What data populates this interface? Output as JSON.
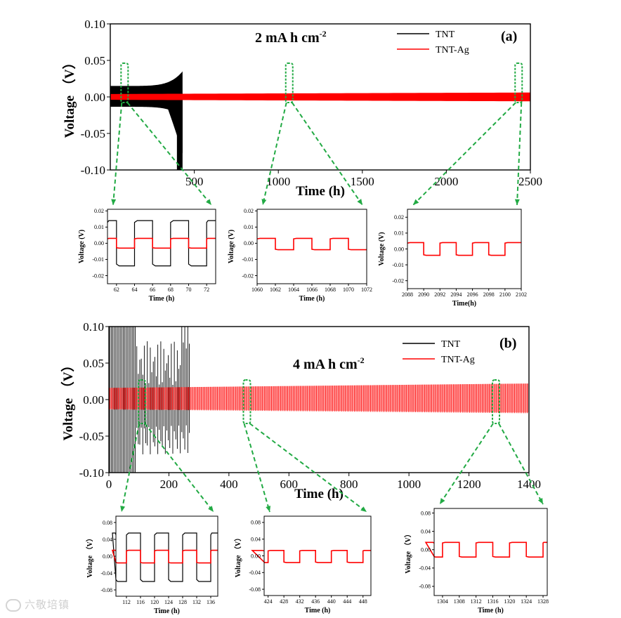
{
  "figure": {
    "watermark": "六敬培镇"
  },
  "chart_data": [
    {
      "id": "a_main",
      "type": "line",
      "panel_label": "(a)",
      "annotation": "2 mA h cm",
      "annotation_sup": "-2",
      "xlabel": "Time (h)",
      "ylabel": "Voltage （V）",
      "xlim": [
        0,
        2500
      ],
      "ylim": [
        -0.1,
        0.1
      ],
      "xticks": [
        500,
        1000,
        1500,
        2000,
        2500
      ],
      "yticks": [
        -0.1,
        -0.05,
        0.0,
        0.05,
        0.1
      ],
      "xtick_labels": [
        "500",
        "1000",
        "1500",
        "2000",
        "2500"
      ],
      "ytick_labels": [
        "-0.10",
        "-0.05",
        "0.00",
        "0.05",
        "0.10"
      ],
      "legend_position": "top-right",
      "series": [
        {
          "name": "TNT",
          "color": "#000000",
          "start_x": 0,
          "end_x": 430,
          "amplitude_start": 0.015,
          "amplitude_end": 0.035
        },
        {
          "name": "TNT-Ag",
          "color": "#ff0000",
          "start_x": 0,
          "end_x": 2500,
          "amplitude_start": 0.004,
          "amplitude_end": 0.006
        }
      ],
      "zoom_marks_x": [
        85,
        1065,
        2430
      ]
    },
    {
      "id": "a_in1",
      "type": "line",
      "xlabel": "Time (h)",
      "ylabel": "Voltage (V)",
      "xlim": [
        61,
        73
      ],
      "ylim": [
        -0.025,
        0.021
      ],
      "xticks": [
        62,
        64,
        66,
        68,
        70,
        72
      ],
      "xtick_labels": [
        "62",
        "64",
        "66",
        "68",
        "70",
        "72"
      ],
      "yticks": [
        -0.02,
        -0.01,
        0.0,
        0.01,
        0.02
      ],
      "ytick_labels": [
        "-0.02",
        "-0.01",
        "0.00",
        "0.01",
        "0.02"
      ],
      "period_h": 4,
      "series": [
        {
          "name": "TNT",
          "color": "#000000",
          "high": 0.014,
          "low": -0.014
        },
        {
          "name": "TNT-Ag",
          "color": "#ff0000",
          "high": 0.003,
          "low": -0.003
        }
      ]
    },
    {
      "id": "a_in2",
      "type": "line",
      "xlabel": "Time (h)",
      "ylabel": "Voltage (V)",
      "xlim": [
        1060,
        1072
      ],
      "ylim": [
        -0.025,
        0.021
      ],
      "xticks": [
        1060,
        1062,
        1064,
        1066,
        1068,
        1070,
        1072
      ],
      "xtick_labels": [
        "1060",
        "1062",
        "1064",
        "1066",
        "1068",
        "1070",
        "1072"
      ],
      "yticks": [
        -0.02,
        -0.01,
        0.0,
        0.01,
        0.02
      ],
      "ytick_labels": [
        "-0.02",
        "-0.01",
        "0.00",
        "0.01",
        "0.02"
      ],
      "period_h": 4,
      "series": [
        {
          "name": "TNT-Ag",
          "color": "#ff0000",
          "high": 0.003,
          "low": -0.004
        }
      ]
    },
    {
      "id": "a_in3",
      "type": "line",
      "xlabel": "Time(h)",
      "ylabel": "Voltage (V)",
      "xlim": [
        2088,
        2102
      ],
      "ylim": [
        -0.025,
        0.025
      ],
      "xticks": [
        2088,
        2090,
        2092,
        2094,
        2096,
        2098,
        2100,
        2102
      ],
      "xtick_labels": [
        "2088",
        "2090",
        "2092",
        "2094",
        "2096",
        "2098",
        "2100",
        "2102"
      ],
      "yticks": [
        -0.02,
        -0.01,
        0.0,
        0.01,
        0.02
      ],
      "ytick_labels": [
        "-0.02",
        "-0.01",
        "0.00",
        "0.01",
        "0.02"
      ],
      "period_h": 4,
      "series": [
        {
          "name": "TNT-Ag",
          "color": "#ff0000",
          "high": 0.004,
          "low": -0.004
        }
      ]
    },
    {
      "id": "b_main",
      "type": "line",
      "panel_label": "(b)",
      "annotation": "4 mA h cm",
      "annotation_sup": "-2",
      "xlabel": "Time (h)",
      "ylabel": "Voltage （V）",
      "xlim": [
        0,
        1400
      ],
      "ylim": [
        -0.1,
        0.1
      ],
      "xticks": [
        0,
        200,
        400,
        600,
        800,
        1000,
        1200,
        1400
      ],
      "yticks": [
        -0.1,
        -0.05,
        0.0,
        0.05,
        0.1
      ],
      "xtick_labels": [
        "0",
        "200",
        "400",
        "600",
        "800",
        "1000",
        "1200",
        "1400"
      ],
      "ytick_labels": [
        "-0.10",
        "-0.05",
        "0.00",
        "0.05",
        "0.10"
      ],
      "legend_position": "top-right",
      "series": [
        {
          "name": "TNT",
          "color": "#000000",
          "start_x": 0,
          "end_x": 270
        },
        {
          "name": "TNT-Ag",
          "color": "#ff0000",
          "start_x": 0,
          "end_x": 1400,
          "amplitude_start": 0.016,
          "amplitude_end": 0.022
        }
      ],
      "zoom_marks_x": [
        110,
        460,
        1290
      ]
    },
    {
      "id": "b_in1",
      "type": "line",
      "xlabel": "Time (h)",
      "ylabel": "Voltage （V）",
      "xlim": [
        109,
        138
      ],
      "ylim": [
        -0.095,
        0.095
      ],
      "xticks": [
        112,
        116,
        120,
        124,
        128,
        132,
        136
      ],
      "xtick_labels": [
        "112",
        "116",
        "120",
        "124",
        "128",
        "132",
        "136"
      ],
      "yticks": [
        -0.08,
        -0.04,
        0.0,
        0.04,
        0.08
      ],
      "ytick_labels": [
        "-0.08",
        "-0.04",
        "0.00",
        "0.04",
        "0.08"
      ],
      "period_h": 8,
      "series": [
        {
          "name": "TNT",
          "color": "#000000",
          "high": 0.055,
          "low": -0.06
        },
        {
          "name": "TNT-Ag",
          "color": "#ff0000",
          "high": 0.014,
          "low": -0.016
        }
      ]
    },
    {
      "id": "b_in2",
      "type": "line",
      "xlabel": "Time (h)",
      "ylabel": "Voltage （V）",
      "xlim": [
        423,
        450
      ],
      "ylim": [
        -0.095,
        0.095
      ],
      "xticks": [
        424,
        428,
        432,
        436,
        440,
        444,
        448
      ],
      "xtick_labels": [
        "424",
        "428",
        "432",
        "436",
        "440",
        "444",
        "448"
      ],
      "yticks": [
        -0.08,
        -0.04,
        0.0,
        0.04,
        0.08
      ],
      "ytick_labels": [
        "-0.08",
        "-0.04",
        "0.00",
        "0.04",
        "0.08"
      ],
      "period_h": 8,
      "series": [
        {
          "name": "TNT-Ag",
          "color": "#ff0000",
          "high": 0.013,
          "low": -0.016
        }
      ]
    },
    {
      "id": "b_in3",
      "type": "line",
      "xlabel": "Time (h)",
      "ylabel": "Voltage （V）",
      "xlim": [
        1302,
        1329
      ],
      "ylim": [
        -0.1,
        0.09
      ],
      "xticks": [
        1304,
        1308,
        1312,
        1316,
        1320,
        1324,
        1328
      ],
      "xtick_labels": [
        "1304",
        "1308",
        "1312",
        "1316",
        "1320",
        "1324",
        "1328"
      ],
      "yticks": [
        -0.08,
        -0.04,
        0.0,
        0.04,
        0.08
      ],
      "ytick_labels": [
        "-0.08",
        "-0.04",
        "0.00",
        "0.04",
        "0.08"
      ],
      "period_h": 8,
      "series": [
        {
          "name": "TNT-Ag",
          "color": "#ff0000",
          "high": 0.016,
          "low": -0.016
        }
      ]
    }
  ]
}
